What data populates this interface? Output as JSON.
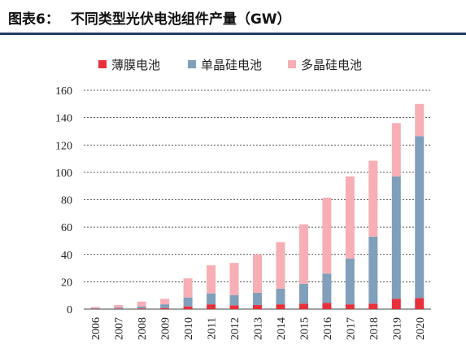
{
  "header": {
    "figure_label": "图表6：",
    "title": "不同类型光伏电池组件产量（GW）"
  },
  "colors": {
    "thin_film": "#e8303a",
    "mono": "#7f9fba",
    "multi": "#f7aeb5",
    "rule": "#1f3a64",
    "grid": "#222222"
  },
  "chart_data": {
    "type": "bar",
    "stacked": true,
    "categories": [
      "2006",
      "2007",
      "2008",
      "2009",
      "2010",
      "2011",
      "2012",
      "2013",
      "2014",
      "2015",
      "2016",
      "2017",
      "2018",
      "2019",
      "2020"
    ],
    "series": [
      {
        "name": "薄膜电池",
        "color": "#e8303a",
        "values": [
          0.2,
          0.4,
          0.5,
          0.8,
          2,
          3.5,
          2.8,
          3,
          3.5,
          4,
          4.5,
          3.5,
          4,
          7.5,
          8
        ]
      },
      {
        "name": "单晶硅电池",
        "color": "#7f9fba",
        "values": [
          0.5,
          0.8,
          1.5,
          2.7,
          6.5,
          8,
          7.5,
          9,
          11.5,
          14.5,
          21.5,
          33.5,
          49,
          89.5,
          118.5
        ]
      },
      {
        "name": "多晶硅电池",
        "color": "#f7aeb5",
        "values": [
          1,
          1.8,
          3.5,
          4,
          14,
          20.5,
          23.5,
          28,
          34,
          43.5,
          55.5,
          60,
          55.5,
          39,
          23.5
        ]
      }
    ],
    "y_ticks": [
      "0",
      "20",
      "40",
      "60",
      "80",
      "100",
      "120",
      "140",
      "160"
    ],
    "ylim": [
      0,
      160
    ],
    "y_tick_step": 20,
    "grid": "dashed-horizontal",
    "legend": "top-center"
  }
}
